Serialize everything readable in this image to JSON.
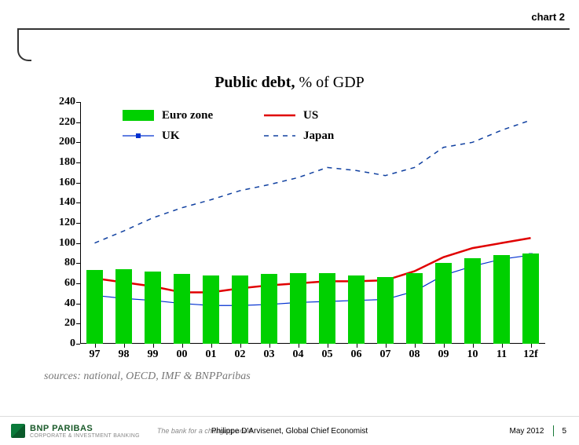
{
  "header": {
    "chart_label": "chart 2"
  },
  "chart": {
    "type": "bar+line",
    "title_bold": "Public debt,",
    "title_rest": " % of GDP",
    "title_fontsize": 20,
    "background_color": "#ffffff",
    "categories": [
      "97",
      "98",
      "99",
      "00",
      "01",
      "02",
      "03",
      "04",
      "05",
      "06",
      "07",
      "08",
      "09",
      "10",
      "11",
      "12f"
    ],
    "ylim": [
      0,
      240
    ],
    "ytick_step": 20,
    "yticks": [
      0,
      20,
      40,
      60,
      80,
      100,
      120,
      140,
      160,
      180,
      200,
      220,
      240
    ],
    "axis_color": "#000000",
    "label_font": "Times New Roman",
    "label_fontsize": 14,
    "series": {
      "euro": {
        "label": "Euro zone",
        "type": "bar",
        "color": "#00d000",
        "bar_width": 0.55,
        "values": [
          73,
          74,
          72,
          69,
          68,
          68,
          69,
          70,
          70,
          68,
          66,
          70,
          80,
          85,
          88,
          90
        ]
      },
      "us": {
        "label": "US",
        "type": "line",
        "color": "#e00000",
        "line_width": 2.5,
        "marker": "none",
        "values": [
          65,
          61,
          57,
          51,
          51,
          55,
          58,
          60,
          62,
          62,
          63,
          72,
          86,
          95,
          100,
          105
        ]
      },
      "uk": {
        "label": "UK",
        "type": "line",
        "color": "#0030d0",
        "line_width": 1.2,
        "marker": "square",
        "marker_size": 5,
        "values": [
          48,
          45,
          43,
          40,
          38,
          38,
          39,
          41,
          42,
          43,
          44,
          52,
          68,
          77,
          84,
          88
        ]
      },
      "japan": {
        "label": "Japan",
        "type": "line",
        "color": "#1040a0",
        "line_width": 1.5,
        "dash": "6,6",
        "marker": "none",
        "values": [
          100,
          112,
          125,
          135,
          143,
          152,
          158,
          165,
          175,
          172,
          167,
          175,
          195,
          200,
          212,
          222
        ]
      }
    },
    "legend": {
      "position": "top-left-inside",
      "order": [
        "euro",
        "us",
        "uk",
        "japan"
      ]
    }
  },
  "sources": "sources: national, OECD, IMF & BNPParibas",
  "footer": {
    "bank_name": "BNP PARIBAS",
    "bank_sub": "CORPORATE & INVESTMENT BANKING",
    "tagline": "The bank for a changing world",
    "author": "Philippe D'Arvisenet, Global Chief Economist",
    "date": "May 2012",
    "page": "5"
  }
}
